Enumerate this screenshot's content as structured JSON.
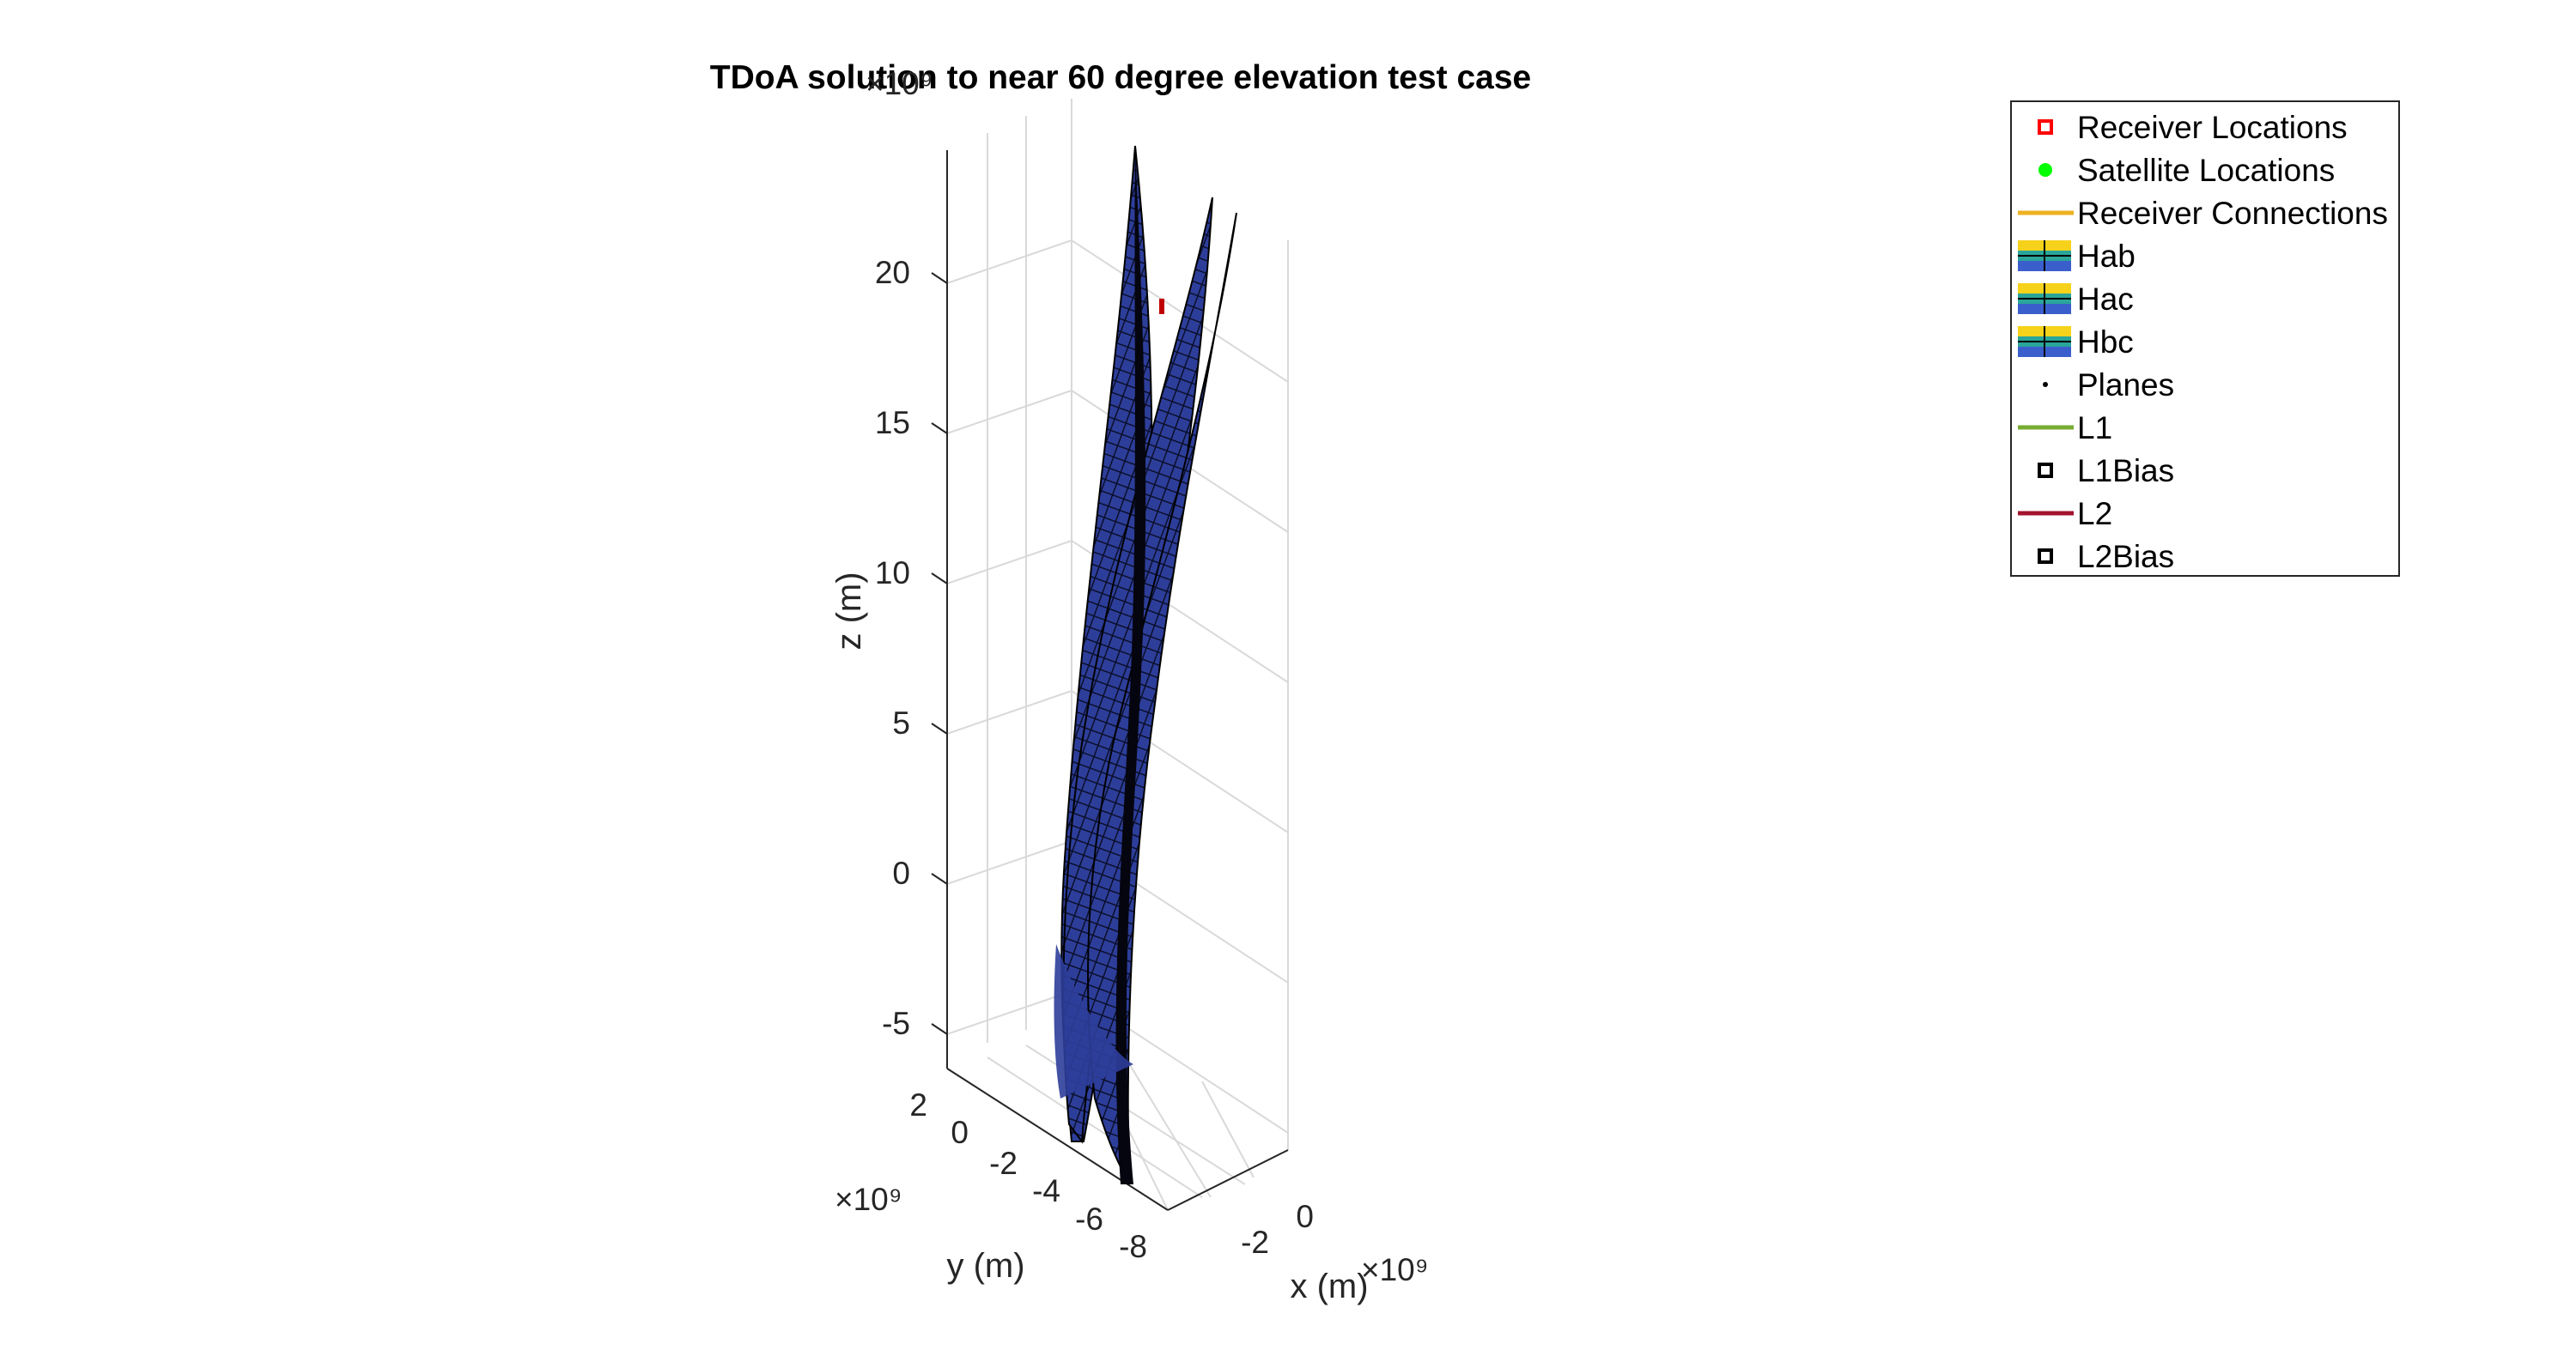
{
  "chart_data": {
    "type": "surface3d",
    "title": "TDoA solution to near 60 degree elevation test case",
    "xlabel": "x (m)",
    "ylabel": "y (m)",
    "zlabel": "z (m)",
    "x_exponent": "×10⁹",
    "y_exponent": "×10⁹",
    "z_exponent": "×10⁹",
    "x_ticks": [
      "-2",
      "0"
    ],
    "y_ticks": [
      "2",
      "0",
      "-2",
      "-4",
      "-6",
      "-8"
    ],
    "z_ticks": [
      "20",
      "15",
      "10",
      "5",
      "0",
      "-5"
    ],
    "grid": true,
    "legend_position": "top-right",
    "legend": [
      {
        "label": "Receiver Locations",
        "color": "#ff0000",
        "marker": "square"
      },
      {
        "label": "Satellite Locations",
        "color": "#00ff00",
        "marker": "dot"
      },
      {
        "label": "Receiver Connections",
        "color": "#edb120",
        "marker": "line"
      },
      {
        "label": "Hab",
        "color": "#3a5fcd",
        "marker": "surface"
      },
      {
        "label": "Hac",
        "color": "#3a5fcd",
        "marker": "surface"
      },
      {
        "label": "Hbc",
        "color": "#3a5fcd",
        "marker": "surface"
      },
      {
        "label": "Planes",
        "color": "#000000",
        "marker": "point"
      },
      {
        "label": "L1",
        "color": "#77ac30",
        "marker": "line"
      },
      {
        "label": "L1Bias",
        "color": "#000000",
        "marker": "square"
      },
      {
        "label": "L2",
        "color": "#a2142f",
        "marker": "line"
      },
      {
        "label": "L2Bias",
        "color": "#000000",
        "marker": "square"
      }
    ]
  }
}
